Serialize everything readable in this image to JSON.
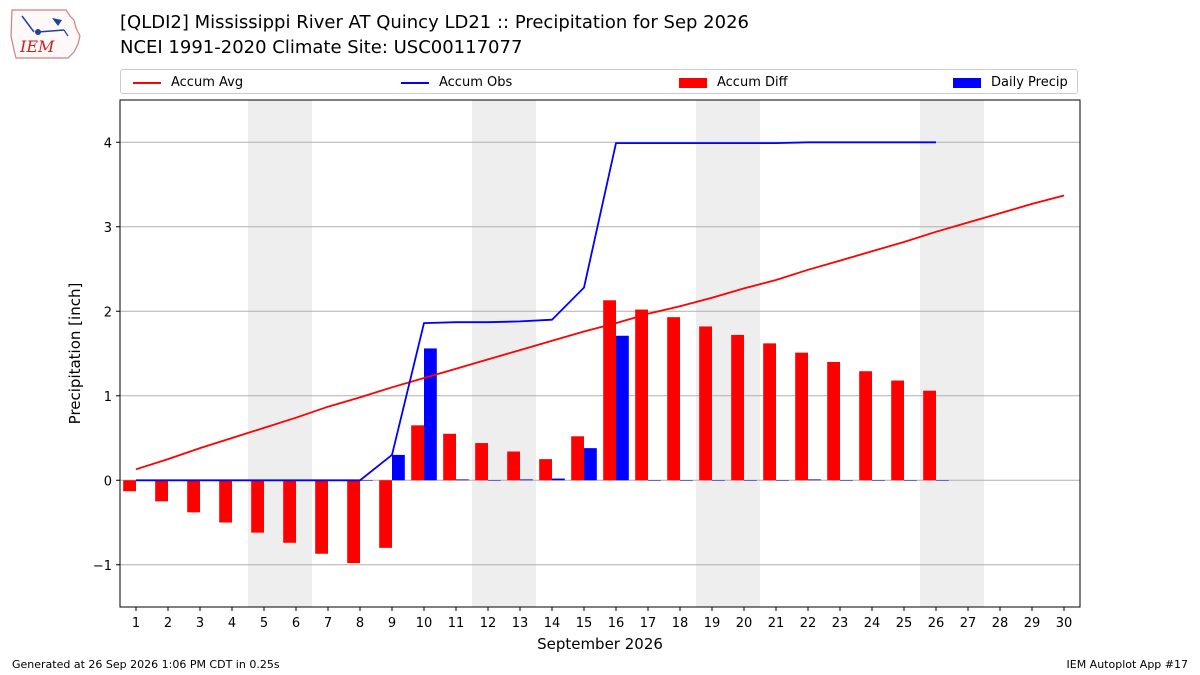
{
  "title_line1": "[QLDI2] Mississippi River  AT Quincy LD21 :: Precipitation for Sep 2026",
  "title_line2": "NCEI 1991-2020 Climate Site: USC00117077",
  "logo_text": "IEM",
  "footer_left": "Generated at 26 Sep 2026 1:06 PM CDT in 0.25s",
  "footer_right": "IEM Autoplot App #17",
  "chart_data": {
    "type": "bar",
    "xlabel": "September 2026",
    "ylabel": "Precipitation [inch]",
    "x": [
      1,
      2,
      3,
      4,
      5,
      6,
      7,
      8,
      9,
      10,
      11,
      12,
      13,
      14,
      15,
      16,
      17,
      18,
      19,
      20,
      21,
      22,
      23,
      24,
      25,
      26,
      27,
      28,
      29,
      30
    ],
    "x_tick_labels": [
      "1",
      "2",
      "3",
      "4",
      "5",
      "6",
      "7",
      "8",
      "9",
      "10",
      "11",
      "12",
      "13",
      "14",
      "15",
      "16",
      "17",
      "18",
      "19",
      "20",
      "21",
      "22",
      "23",
      "24",
      "25",
      "26",
      "27",
      "28",
      "29",
      "30"
    ],
    "xlim": [
      0.5,
      30.5
    ],
    "ylim": [
      -1.5,
      4.5
    ],
    "y_ticks": [
      -1,
      0,
      1,
      2,
      3,
      4
    ],
    "y_tick_labels": [
      "−1",
      "0",
      "1",
      "2",
      "3",
      "4"
    ],
    "grid": "horizontal",
    "legend_position": "top",
    "weekend_shading": [
      [
        4.5,
        6.5
      ],
      [
        11.5,
        13.5
      ],
      [
        18.5,
        20.5
      ],
      [
        25.5,
        27.5
      ]
    ],
    "series": [
      {
        "name": "Accum Avg",
        "type": "line",
        "color": "#ff0000",
        "x": [
          1,
          2,
          3,
          4,
          5,
          6,
          7,
          8,
          9,
          10,
          11,
          12,
          13,
          14,
          15,
          16,
          17,
          18,
          19,
          20,
          21,
          22,
          23,
          24,
          25,
          26,
          27,
          28,
          29,
          30
        ],
        "values": [
          0.13,
          0.25,
          0.38,
          0.5,
          0.62,
          0.74,
          0.87,
          0.98,
          1.1,
          1.21,
          1.32,
          1.43,
          1.54,
          1.65,
          1.76,
          1.86,
          1.97,
          2.06,
          2.16,
          2.27,
          2.37,
          2.49,
          2.6,
          2.71,
          2.82,
          2.94,
          3.05,
          3.16,
          3.27,
          3.37
        ]
      },
      {
        "name": "Accum Obs",
        "type": "line",
        "color": "#0000ff",
        "x": [
          1,
          2,
          3,
          4,
          5,
          6,
          7,
          8,
          9,
          10,
          11,
          12,
          13,
          14,
          15,
          16,
          17,
          18,
          19,
          20,
          21,
          22,
          23,
          24,
          25,
          26
        ],
        "values": [
          0,
          0,
          0,
          0,
          0,
          0,
          0,
          0,
          0.3,
          1.86,
          1.87,
          1.87,
          1.88,
          1.9,
          2.28,
          3.99,
          3.99,
          3.99,
          3.99,
          3.99,
          3.99,
          4.0,
          4.0,
          4.0,
          4.0,
          4.0
        ]
      },
      {
        "name": "Accum Diff",
        "type": "bar",
        "color": "#ff0000",
        "x": [
          1,
          2,
          3,
          4,
          5,
          6,
          7,
          8,
          9,
          10,
          11,
          12,
          13,
          14,
          15,
          16,
          17,
          18,
          19,
          20,
          21,
          22,
          23,
          24,
          25,
          26
        ],
        "values": [
          -0.13,
          -0.25,
          -0.38,
          -0.5,
          -0.62,
          -0.74,
          -0.87,
          -0.98,
          -0.8,
          0.65,
          0.55,
          0.44,
          0.34,
          0.25,
          0.52,
          2.13,
          2.02,
          1.93,
          1.82,
          1.72,
          1.62,
          1.51,
          1.4,
          1.29,
          1.18,
          1.06
        ]
      },
      {
        "name": "Daily Precip",
        "type": "bar",
        "color": "#0000ff",
        "x": [
          1,
          2,
          3,
          4,
          5,
          6,
          7,
          8,
          9,
          10,
          11,
          12,
          13,
          14,
          15,
          16,
          17,
          18,
          19,
          20,
          21,
          22,
          23,
          24,
          25,
          26
        ],
        "values": [
          0,
          0,
          0,
          0,
          0,
          0,
          0,
          0,
          0.3,
          1.56,
          0.01,
          0,
          0.01,
          0.02,
          0.38,
          1.71,
          0,
          0,
          0,
          0,
          0,
          0.01,
          0,
          0,
          0,
          0
        ]
      }
    ]
  }
}
